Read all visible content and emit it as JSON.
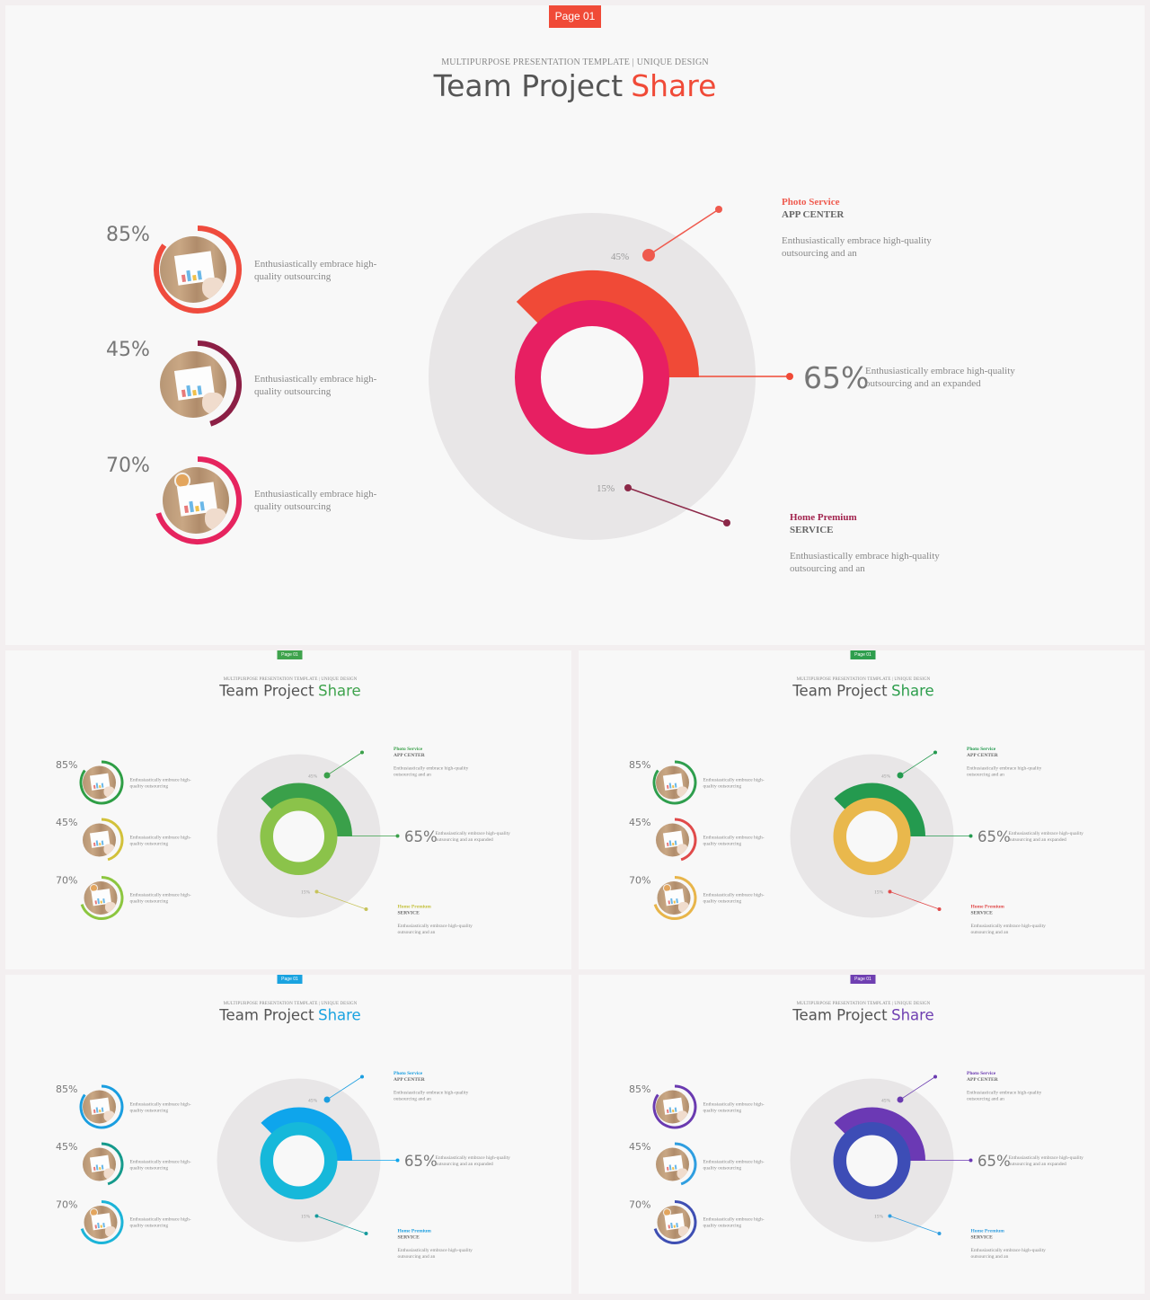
{
  "slides": [
    {
      "key": "main",
      "palette": {
        "accent": "#f04a37",
        "ring1": "#ef4b3d",
        "ring2": "#8c1f45",
        "ring3": "#e6245f",
        "outer_arc": "#f04a37",
        "inner_ring": "#e71f62",
        "line_top": "#ef5a4e",
        "line_bottom": "#8c2848",
        "bottom_title": "#a2244e"
      },
      "page_badge": "Page 01",
      "subtitle": "MULTIPURPOSE PRESENTATION TEMPLATE | UNIQUE DESIGN",
      "title_main": "Team Project",
      "title_accent": "Share",
      "rows": [
        {
          "percent": "85%",
          "value": 0.85,
          "desc": "Enthusiastically embrace high-quality outsourcing"
        },
        {
          "percent": "45%",
          "value": 0.45,
          "desc": "Enthusiastically embrace high-quality outsourcing"
        },
        {
          "percent": "70%",
          "value": 0.7,
          "desc": "Enthusiastically embrace high-quality outsourcing"
        }
      ],
      "pie_top_label": "45%",
      "pie_bottom_label": "15%",
      "right_top": {
        "title": "Photo Service",
        "subtitle": "APP CENTER",
        "desc": "Enthusiastically embrace high-quality outsourcing and an"
      },
      "right_mid": {
        "percent": "65%",
        "desc": "Enthusiastically embrace high-quality outsourcing and an expanded"
      },
      "right_bottom": {
        "title": "Home Premium",
        "subtitle": "SERVICE",
        "desc": "Enthusiastically embrace high-quality outsourcing and an"
      }
    },
    {
      "key": "green",
      "palette": {
        "accent": "#3fa34d",
        "ring1": "#2e9e45",
        "ring2": "#d2c13a",
        "ring3": "#8cc63f",
        "outer_arc": "#3aa04a",
        "inner_ring": "#8bc34a",
        "line_top": "#3aa04a",
        "line_bottom": "#c7c35a",
        "bottom_title": "#c4c03c"
      },
      "page_badge": "Page 01",
      "subtitle": "MULTIPURPOSE PRESENTATION TEMPLATE | UNIQUE DESIGN",
      "title_main": "Team Project",
      "title_accent": "Share",
      "rows": [
        {
          "percent": "85%",
          "value": 0.85,
          "desc": "Enthusiastically embrace high-quality outsourcing"
        },
        {
          "percent": "45%",
          "value": 0.45,
          "desc": "Enthusiastically embrace high-quality outsourcing"
        },
        {
          "percent": "70%",
          "value": 0.7,
          "desc": "Enthusiastically embrace high-quality outsourcing"
        }
      ],
      "pie_top_label": "45%",
      "pie_bottom_label": "15%",
      "right_top": {
        "title": "Photo Service",
        "subtitle": "APP CENTER",
        "desc": "Enthusiastically embrace high-quality outsourcing and an"
      },
      "right_mid": {
        "percent": "65%",
        "desc": "Enthusiastically embrace high-quality outsourcing and an expanded"
      },
      "right_bottom": {
        "title": "Home Premium",
        "subtitle": "SERVICE",
        "desc": "Enthusiastically embrace high-quality outsourcing and an"
      }
    },
    {
      "key": "yellow",
      "palette": {
        "accent": "#2e9e4d",
        "ring1": "#2e9e4d",
        "ring2": "#e04a4a",
        "ring3": "#e8b54a",
        "outer_arc": "#249a4f",
        "inner_ring": "#e9b84c",
        "line_top": "#249a4f",
        "line_bottom": "#e04a4a",
        "bottom_title": "#e04a4a"
      },
      "page_badge": "Page 01",
      "subtitle": "MULTIPURPOSE PRESENTATION TEMPLATE | UNIQUE DESIGN",
      "title_main": "Team Project",
      "title_accent": "Share",
      "rows": [
        {
          "percent": "85%",
          "value": 0.85,
          "desc": "Enthusiastically embrace high-quality outsourcing"
        },
        {
          "percent": "45%",
          "value": 0.45,
          "desc": "Enthusiastically embrace high-quality outsourcing"
        },
        {
          "percent": "70%",
          "value": 0.7,
          "desc": "Enthusiastically embrace high-quality outsourcing"
        }
      ],
      "pie_top_label": "45%",
      "pie_bottom_label": "15%",
      "right_top": {
        "title": "Photo Service",
        "subtitle": "APP CENTER",
        "desc": "Enthusiastically embrace high-quality outsourcing and an"
      },
      "right_mid": {
        "percent": "65%",
        "desc": "Enthusiastically embrace high-quality outsourcing and an expanded"
      },
      "right_bottom": {
        "title": "Home Premium",
        "subtitle": "SERVICE",
        "desc": "Enthusiastically embrace high-quality outsourcing and an"
      }
    },
    {
      "key": "blue",
      "palette": {
        "accent": "#1aa3e0",
        "ring1": "#1a9ee0",
        "ring2": "#159a8c",
        "ring3": "#1cb4d8",
        "outer_arc": "#0ea5ec",
        "inner_ring": "#16b8da",
        "line_top": "#1a9ee0",
        "line_bottom": "#159a9c",
        "bottom_title": "#1a9ee0"
      },
      "page_badge": "Page 01",
      "subtitle": "MULTIPURPOSE PRESENTATION TEMPLATE | UNIQUE DESIGN",
      "title_main": "Team Project",
      "title_accent": "Share",
      "rows": [
        {
          "percent": "85%",
          "value": 0.85,
          "desc": "Enthusiastically embrace high-quality outsourcing"
        },
        {
          "percent": "45%",
          "value": 0.45,
          "desc": "Enthusiastically embrace high-quality outsourcing"
        },
        {
          "percent": "70%",
          "value": 0.7,
          "desc": "Enthusiastically embrace high-quality outsourcing"
        }
      ],
      "pie_top_label": "45%",
      "pie_bottom_label": "15%",
      "right_top": {
        "title": "Photo Service",
        "subtitle": "APP CENTER",
        "desc": "Enthusiastically embrace high-quality outsourcing and an"
      },
      "right_mid": {
        "percent": "65%",
        "desc": "Enthusiastically embrace high-quality outsourcing and an expanded"
      },
      "right_bottom": {
        "title": "Home Premium",
        "subtitle": "SERVICE",
        "desc": "Enthusiastically embrace high-quality outsourcing and an"
      }
    },
    {
      "key": "purple",
      "palette": {
        "accent": "#6f3fb1",
        "ring1": "#6a3ab0",
        "ring2": "#2f9ee0",
        "ring3": "#3f4fb3",
        "outer_arc": "#6b39b4",
        "inner_ring": "#3d4db6",
        "line_top": "#6a3ab0",
        "line_bottom": "#2f9ee0",
        "bottom_title": "#2f9ee0"
      },
      "page_badge": "Page 01",
      "subtitle": "MULTIPURPOSE PRESENTATION TEMPLATE | UNIQUE DESIGN",
      "title_main": "Team Project",
      "title_accent": "Share",
      "rows": [
        {
          "percent": "85%",
          "value": 0.85,
          "desc": "Enthusiastically embrace high-quality outsourcing"
        },
        {
          "percent": "45%",
          "value": 0.45,
          "desc": "Enthusiastically embrace high-quality outsourcing"
        },
        {
          "percent": "70%",
          "value": 0.7,
          "desc": "Enthusiastically embrace high-quality outsourcing"
        }
      ],
      "pie_top_label": "45%",
      "pie_bottom_label": "15%",
      "right_top": {
        "title": "Photo Service",
        "subtitle": "APP CENTER",
        "desc": "Enthusiastically embrace high-quality outsourcing and an"
      },
      "right_mid": {
        "percent": "65%",
        "desc": "Enthusiastically embrace high-quality outsourcing and an expanded"
      },
      "right_bottom": {
        "title": "Home Premium",
        "subtitle": "SERVICE",
        "desc": "Enthusiastically embrace high-quality outsourcing and an"
      }
    }
  ]
}
